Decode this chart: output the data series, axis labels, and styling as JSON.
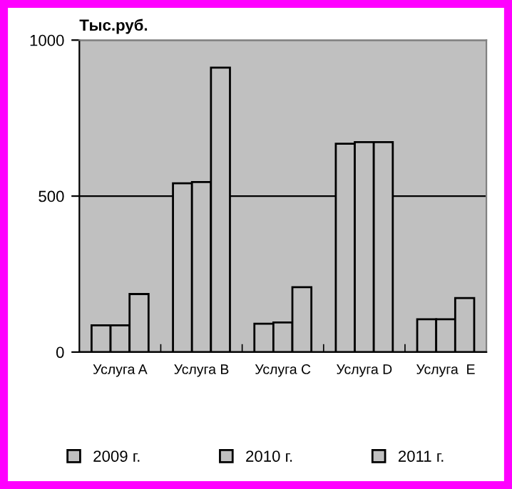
{
  "chart_data": {
    "type": "bar",
    "ylabel": "Тыс.руб.",
    "categories": [
      "Услуга A",
      "Услуга B",
      "Услуга C",
      "Услуга D",
      "Услуга  E"
    ],
    "series": [
      {
        "name": "2009 г.",
        "color": "#c0c0c0",
        "values": [
          86,
          541,
          91,
          668,
          105
        ]
      },
      {
        "name": "2010 г.",
        "color": "#c0c0c0",
        "values": [
          86,
          545,
          95,
          673,
          105
        ]
      },
      {
        "name": "2011 г.",
        "color": "#c0c0c0",
        "values": [
          186,
          912,
          208,
          673,
          173
        ]
      }
    ],
    "ylim": [
      0,
      1000
    ],
    "yticks": [
      0,
      500,
      1000
    ],
    "grid": "y",
    "legend": "bottom"
  }
}
